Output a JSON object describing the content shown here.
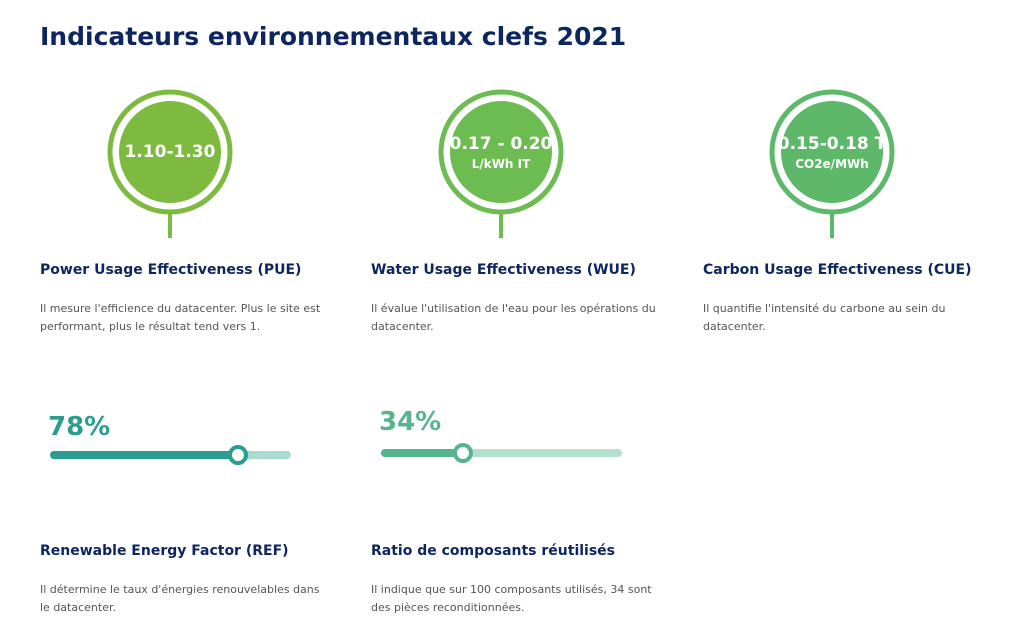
{
  "header": {
    "title": "Indicateurs environnementaux clefs 2021"
  },
  "indicators": [
    {
      "value": "1.10-1.30",
      "name": "Power Usage Effectiveness (PUE)",
      "description": "Il mesure l'efficience du datacenter. Plus le site est performant, plus le résultat tend vers 1."
    },
    {
      "value": "0.17 - 0.20",
      "unit": "L/kWh IT",
      "name": "Water Usage Effectiveness (WUE)",
      "description": "Il évalue l'utilisation de l'eau pour les opérations du datacenter."
    },
    {
      "value": "0.15-0.18 T",
      "unit": "CO2e/MWh",
      "name": "Carbon Usage Effectiveness (CUE)",
      "description": "Il quantifie l'intensité du carbone au sein du datacenter."
    }
  ],
  "gauges": [
    {
      "value": 78,
      "label": "78%",
      "name": "Renewable Energy Factor (REF)",
      "description": "Il détermine le taux d'énergies renouvelables dans le datacenter."
    },
    {
      "value": 34,
      "label": "34%",
      "name": "Ratio de composants réutilisés",
      "description": "Il indique que sur 100 composants utilisés, 34 sont des pièces reconditionnées."
    }
  ]
}
